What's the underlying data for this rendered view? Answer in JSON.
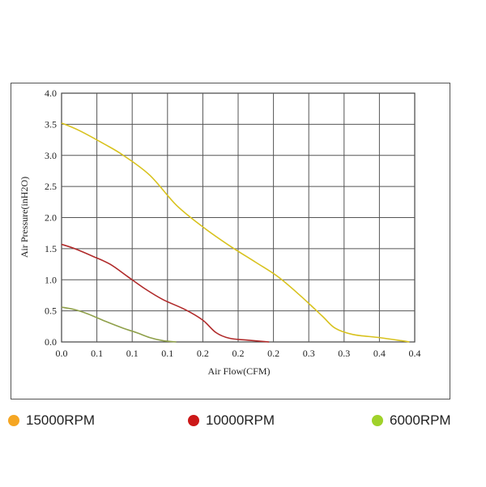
{
  "chart_data": {
    "type": "line",
    "xlabel": "Air Flow(CFM)",
    "ylabel": "Air Pressure(inH2O)",
    "xlim": [
      0,
      0.4
    ],
    "ylim": [
      0,
      4.0
    ],
    "x_tick_labels": [
      "0.0",
      "0.1",
      "0.1",
      "0.1",
      "0.2",
      "0.2",
      "0.2",
      "0.3",
      "0.3",
      "0.4",
      "0.4"
    ],
    "y_tick_labels": [
      "0.0",
      "0.5",
      "1.0",
      "1.5",
      "2.0",
      "2.5",
      "3.0",
      "3.5",
      "4.0"
    ],
    "grid": true,
    "series": [
      {
        "name": "15000RPM",
        "color": "#d8c21e",
        "legend_color": "#f5a623",
        "points": [
          [
            0.0,
            3.52
          ],
          [
            0.02,
            3.4
          ],
          [
            0.05,
            3.17
          ],
          [
            0.07,
            3.0
          ],
          [
            0.1,
            2.68
          ],
          [
            0.13,
            2.2
          ],
          [
            0.16,
            1.85
          ],
          [
            0.19,
            1.55
          ],
          [
            0.22,
            1.28
          ],
          [
            0.245,
            1.05
          ],
          [
            0.27,
            0.75
          ],
          [
            0.295,
            0.42
          ],
          [
            0.31,
            0.22
          ],
          [
            0.33,
            0.12
          ],
          [
            0.36,
            0.07
          ],
          [
            0.385,
            0.02
          ],
          [
            0.394,
            0.0
          ]
        ]
      },
      {
        "name": "10000RPM",
        "color": "#b02a2a",
        "legend_color": "#cc1818",
        "points": [
          [
            0.0,
            1.57
          ],
          [
            0.015,
            1.5
          ],
          [
            0.035,
            1.38
          ],
          [
            0.055,
            1.25
          ],
          [
            0.075,
            1.05
          ],
          [
            0.095,
            0.85
          ],
          [
            0.115,
            0.68
          ],
          [
            0.14,
            0.52
          ],
          [
            0.16,
            0.35
          ],
          [
            0.175,
            0.15
          ],
          [
            0.19,
            0.06
          ],
          [
            0.21,
            0.03
          ],
          [
            0.235,
            0.0
          ]
        ]
      },
      {
        "name": "6000RPM",
        "color": "#8fa04a",
        "legend_color": "#a0d22a",
        "points": [
          [
            0.0,
            0.56
          ],
          [
            0.015,
            0.52
          ],
          [
            0.03,
            0.45
          ],
          [
            0.05,
            0.33
          ],
          [
            0.07,
            0.22
          ],
          [
            0.085,
            0.15
          ],
          [
            0.1,
            0.07
          ],
          [
            0.115,
            0.02
          ],
          [
            0.13,
            0.0
          ]
        ]
      }
    ]
  }
}
